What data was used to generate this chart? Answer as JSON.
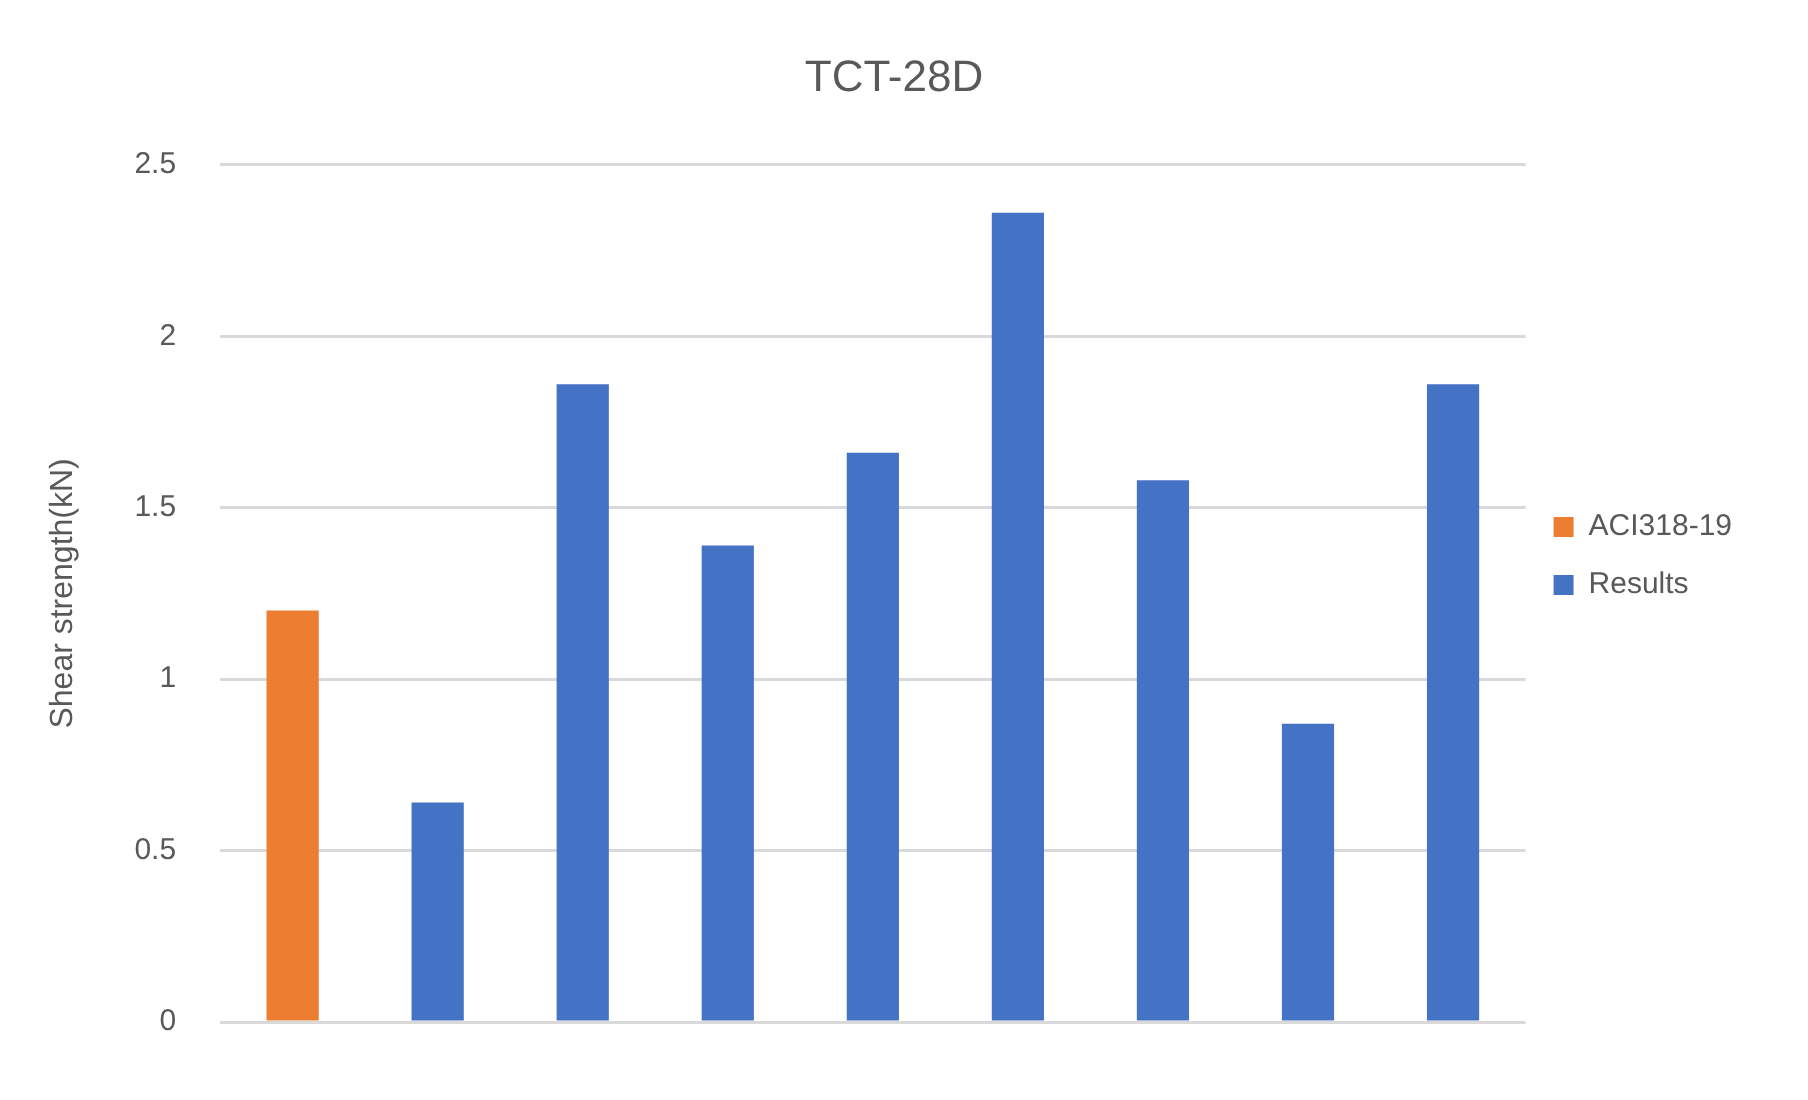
{
  "chart_data": {
    "type": "bar",
    "title": "TCT-28D",
    "ylabel": "Shear strength(kN)",
    "categories": [
      null,
      null,
      null,
      null,
      null,
      null,
      null,
      null,
      null
    ],
    "series": [
      {
        "name": "ACI318-19",
        "color": "#ed7d31",
        "values": [
          1.2,
          null,
          null,
          null,
          null,
          null,
          null,
          null,
          null
        ]
      },
      {
        "name": "Results",
        "color": "#4472c4",
        "values": [
          null,
          0.64,
          1.86,
          1.39,
          1.66,
          2.36,
          1.58,
          0.87,
          1.86
        ]
      }
    ],
    "ylim": [
      0,
      2.5
    ],
    "yticks": [
      0,
      0.5,
      1,
      1.5,
      2,
      2.5
    ],
    "grid": "y",
    "legend": "right"
  }
}
